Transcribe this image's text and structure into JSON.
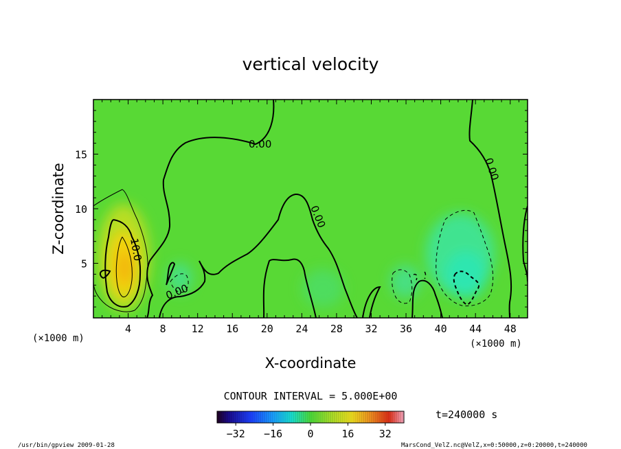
{
  "chart_data": {
    "type": "heatmap",
    "title": "vertical velocity",
    "xlabel": "X-coordinate",
    "ylabel": "Z-coordinate",
    "x_unit": "(×1000 m)",
    "z_unit": "(×1000 m)",
    "xlim": [
      0,
      50
    ],
    "ylim": [
      0,
      20
    ],
    "x_ticks": [
      "4",
      "8",
      "12",
      "16",
      "20",
      "24",
      "28",
      "32",
      "36",
      "40",
      "44",
      "48"
    ],
    "x_tick_values": [
      4,
      8,
      12,
      16,
      20,
      24,
      28,
      32,
      36,
      40,
      44,
      48
    ],
    "y_ticks": [
      "5",
      "10",
      "15"
    ],
    "y_tick_values": [
      5,
      10,
      15
    ],
    "contour_labels": [
      "0.00",
      "0.00",
      "0.00",
      "0.00",
      "10.0"
    ],
    "contour_interval": "CONTOUR INTERVAL = 5.000E+00",
    "colorbar": {
      "range": [
        -40,
        40
      ],
      "tick_labels": [
        "−32",
        "−16",
        "0",
        "16",
        "32"
      ],
      "tick_values": [
        -32,
        -16,
        0,
        16,
        32
      ]
    },
    "features": [
      {
        "kind": "updraft",
        "x_center": 3.8,
        "z_center": 5.0,
        "peak": 15
      },
      {
        "kind": "downdraft",
        "x_center": 42.5,
        "z_center": 3.5,
        "peak": -10
      },
      {
        "kind": "downdraft",
        "x_center": 35.0,
        "z_center": 3.5,
        "peak": -5
      },
      {
        "kind": "downdraft",
        "x_center": 10.5,
        "z_center": 4.0,
        "peak": -5
      }
    ]
  },
  "time_label": "t=240000 s",
  "footer": {
    "left": "/usr/bin/gpview  2009-01-28",
    "right": "MarsCond_VelZ.nc@VelZ,x=0:50000,z=0:20000,t=240000"
  },
  "colors": {
    "background": "#58d935",
    "updraft": "#f4d20c",
    "downdraft": "#2ee6b0"
  }
}
